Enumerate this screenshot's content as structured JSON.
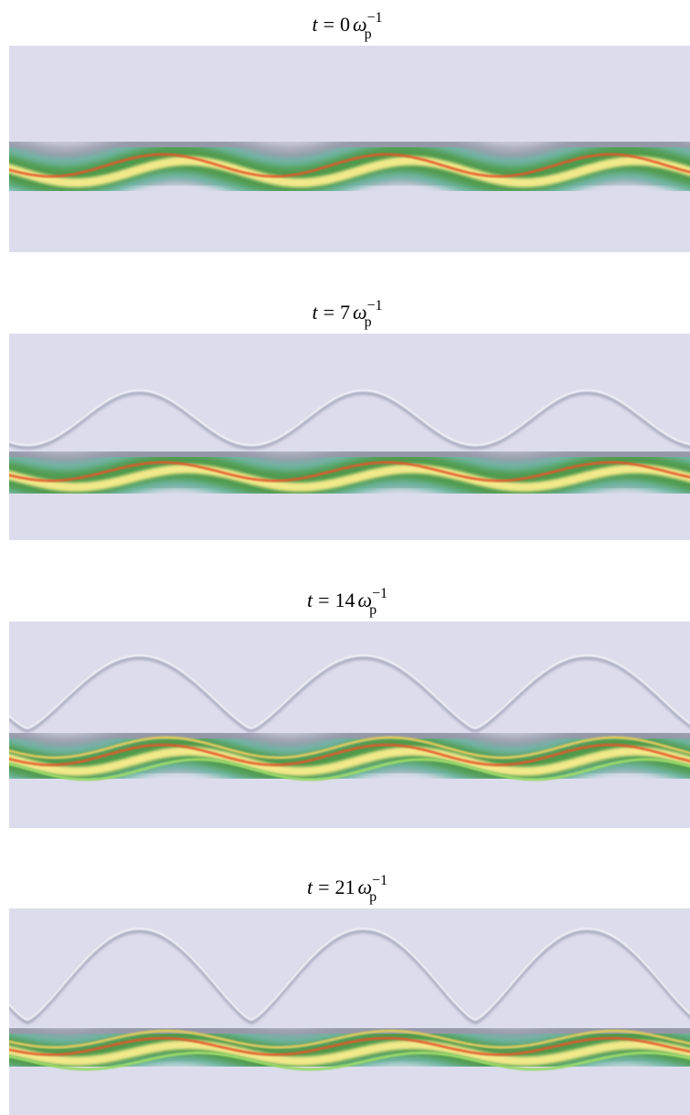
{
  "panels": [
    {
      "title": {
        "variable": "t",
        "equals": "=",
        "value": "0",
        "symbol": "ω",
        "subscript": "p",
        "superscript": "−1"
      }
    },
    {
      "title": {
        "variable": "t",
        "equals": "=",
        "value": "7",
        "symbol": "ω",
        "subscript": "p",
        "superscript": "−1"
      }
    },
    {
      "title": {
        "variable": "t",
        "equals": "=",
        "value": "14",
        "symbol": "ω",
        "subscript": "p",
        "superscript": "−1"
      }
    },
    {
      "title": {
        "variable": "t",
        "equals": "=",
        "value": "21",
        "symbol": "ω",
        "subscript": "p",
        "superscript": "−1"
      }
    }
  ]
}
